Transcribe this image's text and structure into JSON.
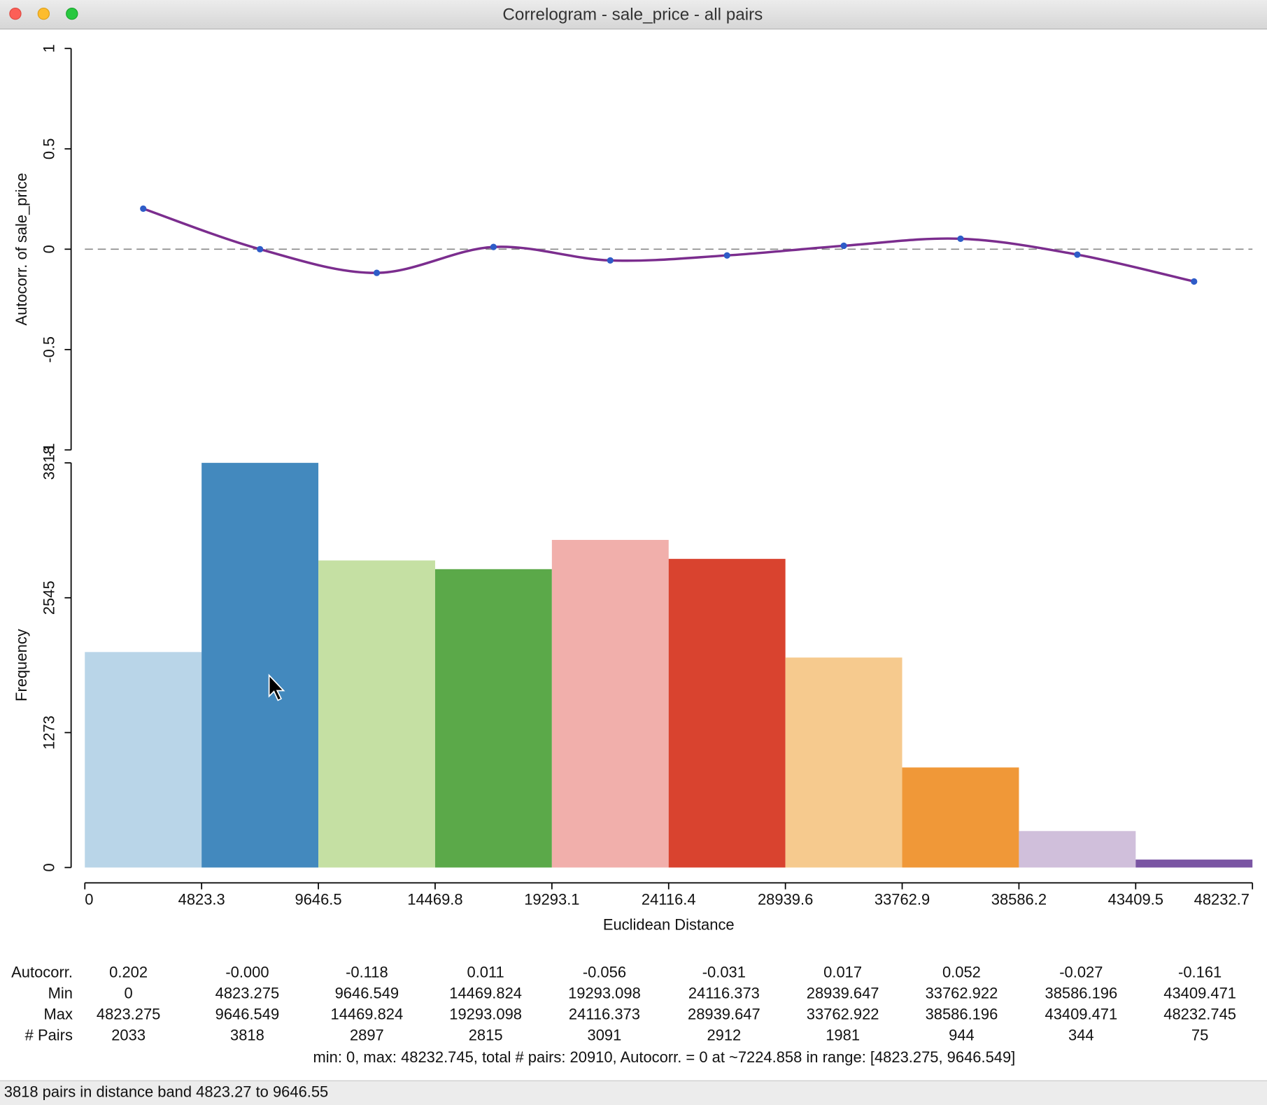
{
  "window_title": "Correlogram - sale_price - all pairs",
  "chart_data": [
    {
      "type": "line",
      "y_label": "Autocorr. of sale_price",
      "x": [
        2411.6375,
        7234.912,
        12058.1865,
        16881.461,
        21704.7355,
        26528.01,
        31351.2845,
        36174.559,
        40997.8335,
        45821.108
      ],
      "values": [
        0.202,
        -0.0,
        -0.118,
        0.011,
        -0.056,
        -0.031,
        0.017,
        0.052,
        -0.027,
        -0.161
      ],
      "value_labels": [
        "0.202",
        "-0.000",
        "-0.118",
        "0.011",
        "-0.056",
        "-0.031",
        "0.017",
        "0.052",
        "-0.027",
        "-0.161"
      ],
      "xlim": [
        0,
        48232.745
      ],
      "ylim": [
        -1,
        1
      ],
      "yticks": [
        -1,
        -0.5,
        0,
        0.5,
        1
      ],
      "line_color": "#7b2d8e",
      "point_color": "#2e5cc8",
      "zero_line": true
    },
    {
      "type": "histogram",
      "x_label": "Euclidean Distance",
      "y_label": "Frequency",
      "bins": [
        0,
        4823.275,
        9646.549,
        14469.824,
        19293.098,
        24116.373,
        28939.647,
        33762.922,
        38586.196,
        43409.471,
        48232.745
      ],
      "values": [
        2033,
        3818,
        2897,
        2815,
        3091,
        2912,
        1981,
        944,
        344,
        75
      ],
      "colors": [
        "#b9d5e8",
        "#4389be",
        "#c5e0a3",
        "#5ba949",
        "#f1afab",
        "#d9432f",
        "#f6ca8e",
        "#f09838",
        "#d0bfdb",
        "#7a55a3"
      ],
      "ylim": [
        0,
        3818
      ],
      "yticks": [
        0,
        1273,
        2545,
        3818
      ],
      "xticks": [
        0,
        {
          "value": 4823.275,
          "label": "4823.3"
        },
        {
          "value": 9646.549,
          "label": "9646.5"
        },
        {
          "value": 14469.824,
          "label": "14469.8"
        },
        {
          "value": 19293.098,
          "label": "19293.1"
        },
        {
          "value": 24116.373,
          "label": "24116.4"
        },
        {
          "value": 28939.647,
          "label": "28939.6"
        },
        {
          "value": 33762.922,
          "label": "33762.9"
        },
        {
          "value": 38586.196,
          "label": "38586.2"
        },
        {
          "value": 43409.471,
          "label": "43409.5"
        },
        {
          "value": 48232.745,
          "label": "48232.7"
        }
      ]
    }
  ],
  "table": {
    "row_labels": [
      "Autocorr.",
      "Min",
      "Max",
      "# Pairs"
    ]
  },
  "summary": "min: 0, max: 48232.745, total # pairs: 20910, Autocorr. = 0 at ~7224.858 in range: [4823.275, 9646.549]",
  "status_bar": "3818 pairs in distance band 4823.27 to 9646.55"
}
